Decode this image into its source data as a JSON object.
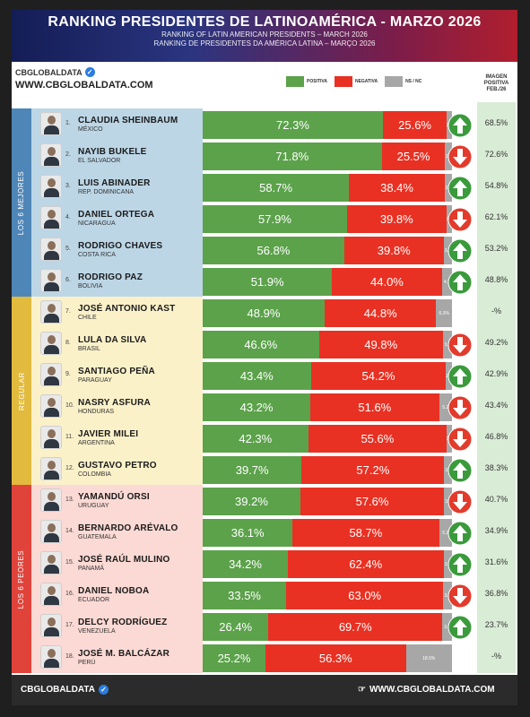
{
  "header": {
    "title": "RANKING PRESIDENTES DE LATINOAMÉRICA - MARZO 2026",
    "subtitle_en": "RANKING OF LATIN AMERICAN PRESIDENTS – MARCH 2026",
    "subtitle_pt": "RANKING DE PRESIDENTES DA AMÉRICA LATINA – MARÇO 2026"
  },
  "brand": {
    "name": "CBGLOBALDATA",
    "url": "WWW.CBGLOBALDATA.COM"
  },
  "legend": {
    "positive": "POSITIVA",
    "negative": "NEGATIVA",
    "ns": "NS / NC"
  },
  "image_previous_header": "IMAGEN POSITIVA FEB./26",
  "colors": {
    "positive": "#5ca24b",
    "negative": "#e83123",
    "ns": "#a7a7a7",
    "arrow_up": "#3a9a3c",
    "arrow_down": "#e23b2c"
  },
  "groups": [
    {
      "label": "LOS 6 MEJORES",
      "color": "#bcd6e6",
      "bar_color": "#4f86b8"
    },
    {
      "label": "REGULAR",
      "color": "#fbf1c9",
      "bar_color": "#e2ba3e"
    },
    {
      "label": "LOS 6 PEORES",
      "color": "#fbd9d4",
      "bar_color": "#e0433a"
    }
  ],
  "footer": {
    "left": "CBGLOBALDATA",
    "right": "WWW.CBGLOBALDATA.COM"
  },
  "chart_data": {
    "type": "bar",
    "series": [
      {
        "name": "POSITIVA",
        "values": [
          72.3,
          71.8,
          58.7,
          57.9,
          56.8,
          51.9,
          48.9,
          46.6,
          43.4,
          43.2,
          42.3,
          39.7,
          39.2,
          36.1,
          34.2,
          33.5,
          26.4,
          25.2
        ]
      },
      {
        "name": "NEGATIVA",
        "values": [
          25.6,
          25.5,
          38.4,
          39.8,
          39.8,
          44.0,
          44.8,
          49.8,
          54.2,
          51.6,
          55.6,
          57.2,
          57.6,
          58.7,
          62.4,
          63.0,
          69.7,
          56.3
        ]
      },
      {
        "name": "NS / NC",
        "values": [
          2.1,
          2.7,
          2.9,
          2.3,
          3.4,
          4.1,
          6.3,
          3.6,
          2.4,
          5.2,
          2.1,
          3.1,
          3.2,
          5.2,
          3.4,
          3.5,
          3.9,
          18.5
        ]
      }
    ],
    "rows": [
      {
        "rank": "1.",
        "name": "CLAUDIA SHEINBAUM",
        "country": "MÉXICO",
        "positive": 72.3,
        "negative": 25.6,
        "ns": 2.1,
        "pos_label": "72.3%",
        "neg_label": "25.6%",
        "ns_label": "2.1",
        "trend": "up",
        "previous": "68.5%"
      },
      {
        "rank": "2.",
        "name": "NAYIB BUKELE",
        "country": "EL SALVADOR",
        "positive": 71.8,
        "negative": 25.5,
        "ns": 2.7,
        "pos_label": "71.8%",
        "neg_label": "25.5%",
        "ns_label": "2.7",
        "trend": "down",
        "previous": "72.6%"
      },
      {
        "rank": "3.",
        "name": "LUIS ABINADER",
        "country": "REP. DOMINICANA",
        "positive": 58.7,
        "negative": 38.4,
        "ns": 2.9,
        "pos_label": "58.7%",
        "neg_label": "38.4%",
        "ns_label": "2.9",
        "trend": "up",
        "previous": "54.8%"
      },
      {
        "rank": "4.",
        "name": "DANIEL ORTEGA",
        "country": "NICARAGUA",
        "positive": 57.9,
        "negative": 39.8,
        "ns": 2.3,
        "pos_label": "57.9%",
        "neg_label": "39.8%",
        "ns_label": "2.3",
        "trend": "down",
        "previous": "62.1%"
      },
      {
        "rank": "5.",
        "name": "RODRIGO CHAVES",
        "country": "COSTA RICA",
        "positive": 56.8,
        "negative": 39.8,
        "ns": 3.4,
        "pos_label": "56.8%",
        "neg_label": "39.8%",
        "ns_label": "3.4",
        "trend": "up",
        "previous": "53.2%"
      },
      {
        "rank": "6.",
        "name": "RODRIGO PAZ",
        "country": "BOLIVIA",
        "positive": 51.9,
        "negative": 44.0,
        "ns": 4.1,
        "pos_label": "51.9%",
        "neg_label": "44.0%",
        "ns_label": "4.1",
        "trend": "up",
        "previous": "48.8%"
      },
      {
        "rank": "7.",
        "name": "JOSÉ ANTONIO KAST",
        "country": "CHILE",
        "positive": 48.9,
        "negative": 44.8,
        "ns": 6.3,
        "pos_label": "48.9%",
        "neg_label": "44.8%",
        "ns_label": "6.3%",
        "trend": "none",
        "previous": "-%"
      },
      {
        "rank": "8.",
        "name": "LULA DA SILVA",
        "country": "BRASIL",
        "positive": 46.6,
        "negative": 49.8,
        "ns": 3.6,
        "pos_label": "46.6%",
        "neg_label": "49.8%",
        "ns_label": "3.6",
        "trend": "down",
        "previous": "49.2%"
      },
      {
        "rank": "9.",
        "name": "SANTIAGO PEÑA",
        "country": "PARAGUAY",
        "positive": 43.4,
        "negative": 54.2,
        "ns": 2.4,
        "pos_label": "43.4%",
        "neg_label": "54.2%",
        "ns_label": "2.4",
        "trend": "up",
        "previous": "42.9%"
      },
      {
        "rank": "10.",
        "name": "NASRY ASFURA",
        "country": "HONDURAS",
        "positive": 43.2,
        "negative": 51.6,
        "ns": 5.2,
        "pos_label": "43.2%",
        "neg_label": "51.6%",
        "ns_label": "5.2",
        "trend": "down",
        "previous": "43.4%"
      },
      {
        "rank": "11.",
        "name": "JAVIER MILEI",
        "country": "ARGENTINA",
        "positive": 42.3,
        "negative": 55.6,
        "ns": 2.1,
        "pos_label": "42.3%",
        "neg_label": "55.6%",
        "ns_label": "2.1",
        "trend": "down",
        "previous": "46.8%"
      },
      {
        "rank": "12.",
        "name": "GUSTAVO PETRO",
        "country": "COLOMBIA",
        "positive": 39.7,
        "negative": 57.2,
        "ns": 3.1,
        "pos_label": "39.7%",
        "neg_label": "57.2%",
        "ns_label": "3.1",
        "trend": "up",
        "previous": "38.3%"
      },
      {
        "rank": "13.",
        "name": "YAMANDÚ ORSI",
        "country": "URUGUAY",
        "positive": 39.2,
        "negative": 57.6,
        "ns": 3.2,
        "pos_label": "39.2%",
        "neg_label": "57.6%",
        "ns_label": "3.2",
        "trend": "down",
        "previous": "40.7%"
      },
      {
        "rank": "14.",
        "name": "BERNARDO ARÉVALO",
        "country": "GUATEMALA",
        "positive": 36.1,
        "negative": 58.7,
        "ns": 5.2,
        "pos_label": "36.1%",
        "neg_label": "58.7%",
        "ns_label": "5.2",
        "trend": "up",
        "previous": "34.9%"
      },
      {
        "rank": "15.",
        "name": "JOSÉ RAÚL MULINO",
        "country": "PANAMÁ",
        "positive": 34.2,
        "negative": 62.4,
        "ns": 3.4,
        "pos_label": "34.2%",
        "neg_label": "62.4%",
        "ns_label": "3.4",
        "trend": "up",
        "previous": "31.6%"
      },
      {
        "rank": "16.",
        "name": "DANIEL NOBOA",
        "country": "ECUADOR",
        "positive": 33.5,
        "negative": 63.0,
        "ns": 3.5,
        "pos_label": "33.5%",
        "neg_label": "63.0%",
        "ns_label": "3.5",
        "trend": "down",
        "previous": "36.8%"
      },
      {
        "rank": "17.",
        "name": "DELCY RODRÍGUEZ",
        "country": "VENEZUELA",
        "positive": 26.4,
        "negative": 69.7,
        "ns": 3.9,
        "pos_label": "26.4%",
        "neg_label": "69.7%",
        "ns_label": "3.9",
        "trend": "up",
        "previous": "23.7%"
      },
      {
        "rank": "18.",
        "name": "JOSÉ M. BALCÁZAR",
        "country": "PERÚ",
        "positive": 25.2,
        "negative": 56.3,
        "ns": 18.5,
        "pos_label": "25.2%",
        "neg_label": "56.3%",
        "ns_label": "18.5%",
        "trend": "none",
        "previous": "-%"
      }
    ]
  }
}
